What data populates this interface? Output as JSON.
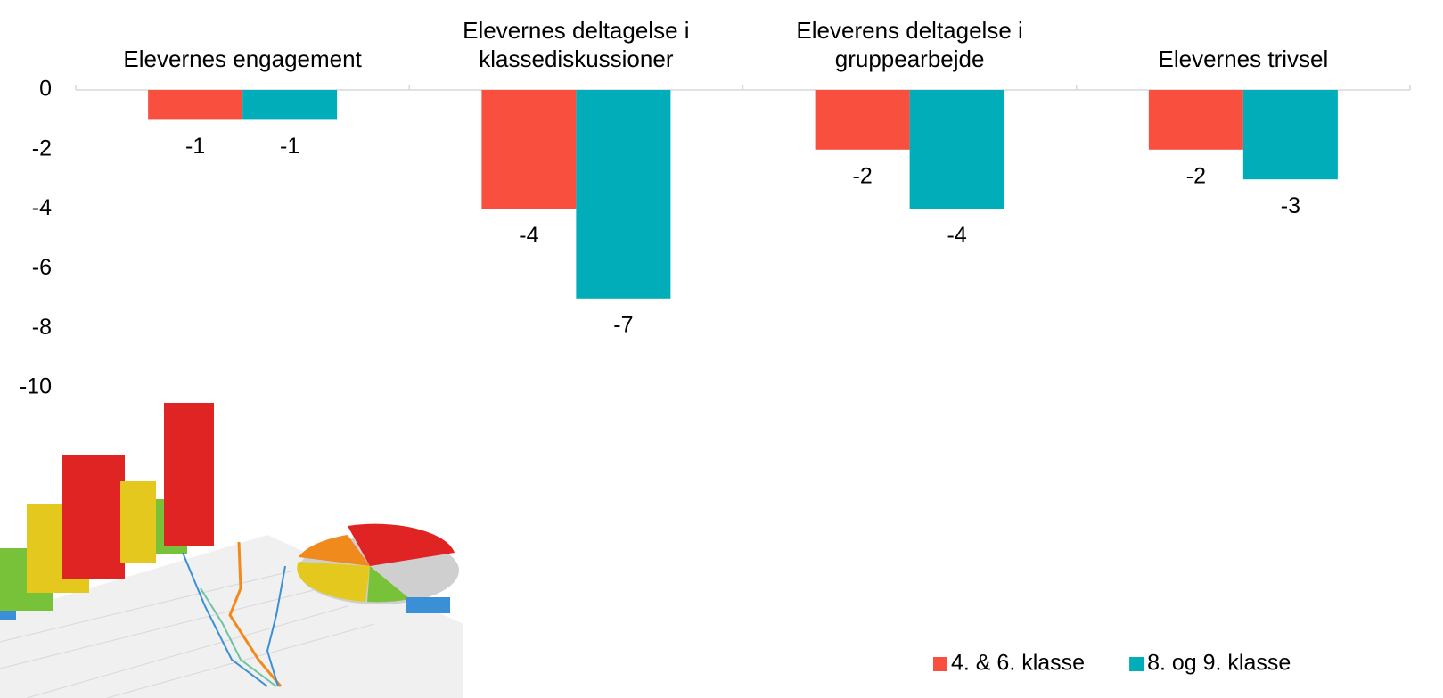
{
  "chart_data": {
    "type": "bar",
    "categories": [
      "Elevernes engagement",
      "Elevernes deltagelse i klassediskussioner",
      "Eleverens deltagelse i gruppearbejde",
      "Elevernes trivsel"
    ],
    "series": [
      {
        "name": "4. & 6. klasse",
        "color": "#f94f3f",
        "values": [
          -1,
          -4,
          -2,
          -2
        ]
      },
      {
        "name": "8. og 9. klasse",
        "color": "#00adb9",
        "values": [
          -1,
          -7,
          -4,
          -3
        ]
      }
    ],
    "ylim": [
      -10,
      0
    ],
    "yticks": [
      0,
      -2,
      -4,
      -6,
      -8,
      -10
    ],
    "grid": false,
    "legend": "bottom-right"
  }
}
